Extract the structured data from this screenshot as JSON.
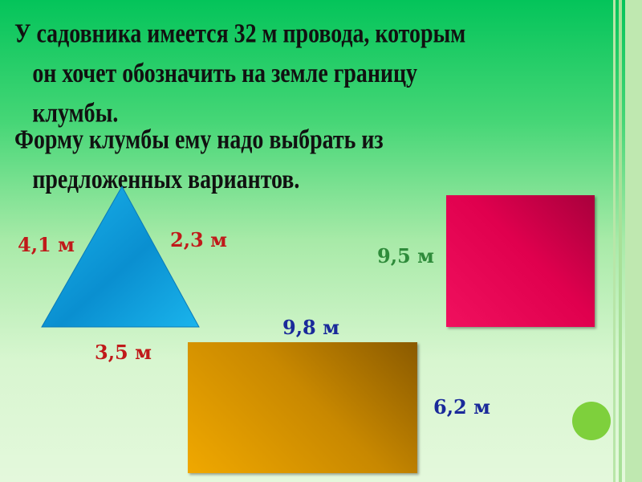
{
  "text": {
    "p1_line1": "У садовника имеется 32 м провода, которым",
    "p1_line2": "он хочет обозначить на земле границу",
    "p1_line3": "клумбы.",
    "p2_line1": "Форму клумбы ему надо выбрать из",
    "p2_line2": "предложенных вариантов."
  },
  "shapes": {
    "triangle": {
      "sides": [
        "4,1 м",
        "2,3 м",
        "3,5 м"
      ],
      "color": "#1aa6e0"
    },
    "square": {
      "side": "9,5 м",
      "color": "#e0004e"
    },
    "rectangle": {
      "width": "9,8 м",
      "height": "6,2 м",
      "color": "#e09a00"
    }
  },
  "colors": {
    "label_red": "#c01a1a",
    "label_green": "#2e8b3a",
    "label_blue": "#1a2a9a",
    "bullet": "#7ed03c"
  }
}
